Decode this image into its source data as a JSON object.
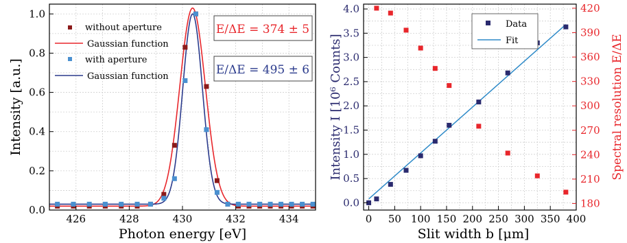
{
  "chart_data": [
    {
      "type": "scatter",
      "xlabel": "Photon energy [eV]",
      "ylabel": "Intensity [a.u.]",
      "xlim": [
        425,
        435
      ],
      "ylim": [
        0,
        1.05
      ],
      "x_ticks": [
        "426",
        "428",
        "430",
        "432",
        "434"
      ],
      "y_ticks": [
        "0.0",
        "0.2",
        "0.4",
        "0.6",
        "0.8",
        "1.0"
      ],
      "grid": true,
      "legend_position": "top-left",
      "legend": [
        "without aperture",
        "Gaussian function",
        "with aperture",
        "Gaussian function"
      ],
      "annotations": [
        {
          "text": "E/ΔE = 374 ± 5",
          "color": "#e8262b"
        },
        {
          "text": "E/ΔE = 495 ± 6",
          "color": "#2a3a8c"
        }
      ],
      "series": [
        {
          "name": "without aperture",
          "kind": "points",
          "color": "#8b1a1a",
          "x": [
            425.3,
            425.9,
            426.5,
            427.1,
            427.7,
            428.3,
            428.8,
            429.3,
            429.7,
            430.1,
            430.5,
            430.9,
            431.3,
            431.7,
            432.1,
            432.5,
            432.9,
            433.3,
            433.7,
            434.1,
            434.5,
            434.9
          ],
          "y": [
            0.02,
            0.02,
            0.02,
            0.02,
            0.02,
            0.02,
            0.03,
            0.08,
            0.33,
            0.83,
            1.0,
            0.63,
            0.15,
            0.03,
            0.02,
            0.02,
            0.02,
            0.02,
            0.02,
            0.02,
            0.02,
            0.02
          ]
        },
        {
          "name": "Gaussian function",
          "kind": "gaussian",
          "color": "#e8262b",
          "center": 430.38,
          "sigma": 0.48,
          "amplitude": 1.01,
          "baseline": 0.02
        },
        {
          "name": "with aperture",
          "kind": "points",
          "color": "#4a90d0",
          "x": [
            425.3,
            425.9,
            426.5,
            427.1,
            427.7,
            428.3,
            428.8,
            429.3,
            429.7,
            430.1,
            430.5,
            430.9,
            431.3,
            431.7,
            432.1,
            432.5,
            432.9,
            433.3,
            433.7,
            434.1,
            434.5,
            434.9
          ],
          "y": [
            0.03,
            0.03,
            0.03,
            0.03,
            0.03,
            0.03,
            0.03,
            0.06,
            0.16,
            0.66,
            1.0,
            0.41,
            0.09,
            0.03,
            0.03,
            0.03,
            0.03,
            0.03,
            0.03,
            0.03,
            0.03,
            0.03
          ]
        },
        {
          "name": "Gaussian function",
          "kind": "gaussian",
          "color": "#2a3a8c",
          "center": 430.38,
          "sigma": 0.37,
          "amplitude": 0.97,
          "baseline": 0.03
        }
      ]
    },
    {
      "type": "scatter",
      "xlabel": "Slit width b [μm]",
      "ylabel": "Intensity I [10⁶ Counts]",
      "ylabel_right": "Spectral resolution E/ΔE",
      "xlim": [
        -10,
        400
      ],
      "ylim": [
        -0.15,
        4.1
      ],
      "ylim_right": [
        172,
        425
      ],
      "x_ticks": [
        "0",
        "50",
        "100",
        "150",
        "200",
        "250",
        "300",
        "350",
        "400"
      ],
      "y_ticks": [
        "0.0",
        "0.5",
        "1.0",
        "1.5",
        "2.0",
        "2.5",
        "3.0",
        "3.5",
        "4.0"
      ],
      "y_ticks_right": [
        "180",
        "210",
        "240",
        "270",
        "300",
        "330",
        "360",
        "390",
        "420"
      ],
      "grid": true,
      "legend_position": "top-right",
      "legend": [
        "Data",
        "Fit"
      ],
      "series": [
        {
          "name": "Data",
          "kind": "points",
          "axis": "left",
          "color": "#2a2a6e",
          "x": [
            0,
            15,
            42,
            72,
            100,
            128,
            155,
            212,
            268,
            325,
            380
          ],
          "y": [
            0.0,
            0.08,
            0.38,
            0.67,
            0.97,
            1.27,
            1.6,
            2.08,
            2.68,
            3.3,
            3.63
          ]
        },
        {
          "name": "Fit",
          "kind": "line",
          "axis": "left",
          "color": "#2e8ac8",
          "x": [
            0,
            380
          ],
          "y": [
            0.08,
            3.68
          ]
        },
        {
          "kind": "points",
          "axis": "right",
          "color": "#e8262b",
          "x": [
            15,
            42,
            72,
            100,
            128,
            155,
            212,
            268,
            325,
            380
          ],
          "y": [
            420,
            414,
            393,
            371,
            346,
            325,
            275,
            242,
            214,
            194
          ]
        }
      ]
    }
  ]
}
